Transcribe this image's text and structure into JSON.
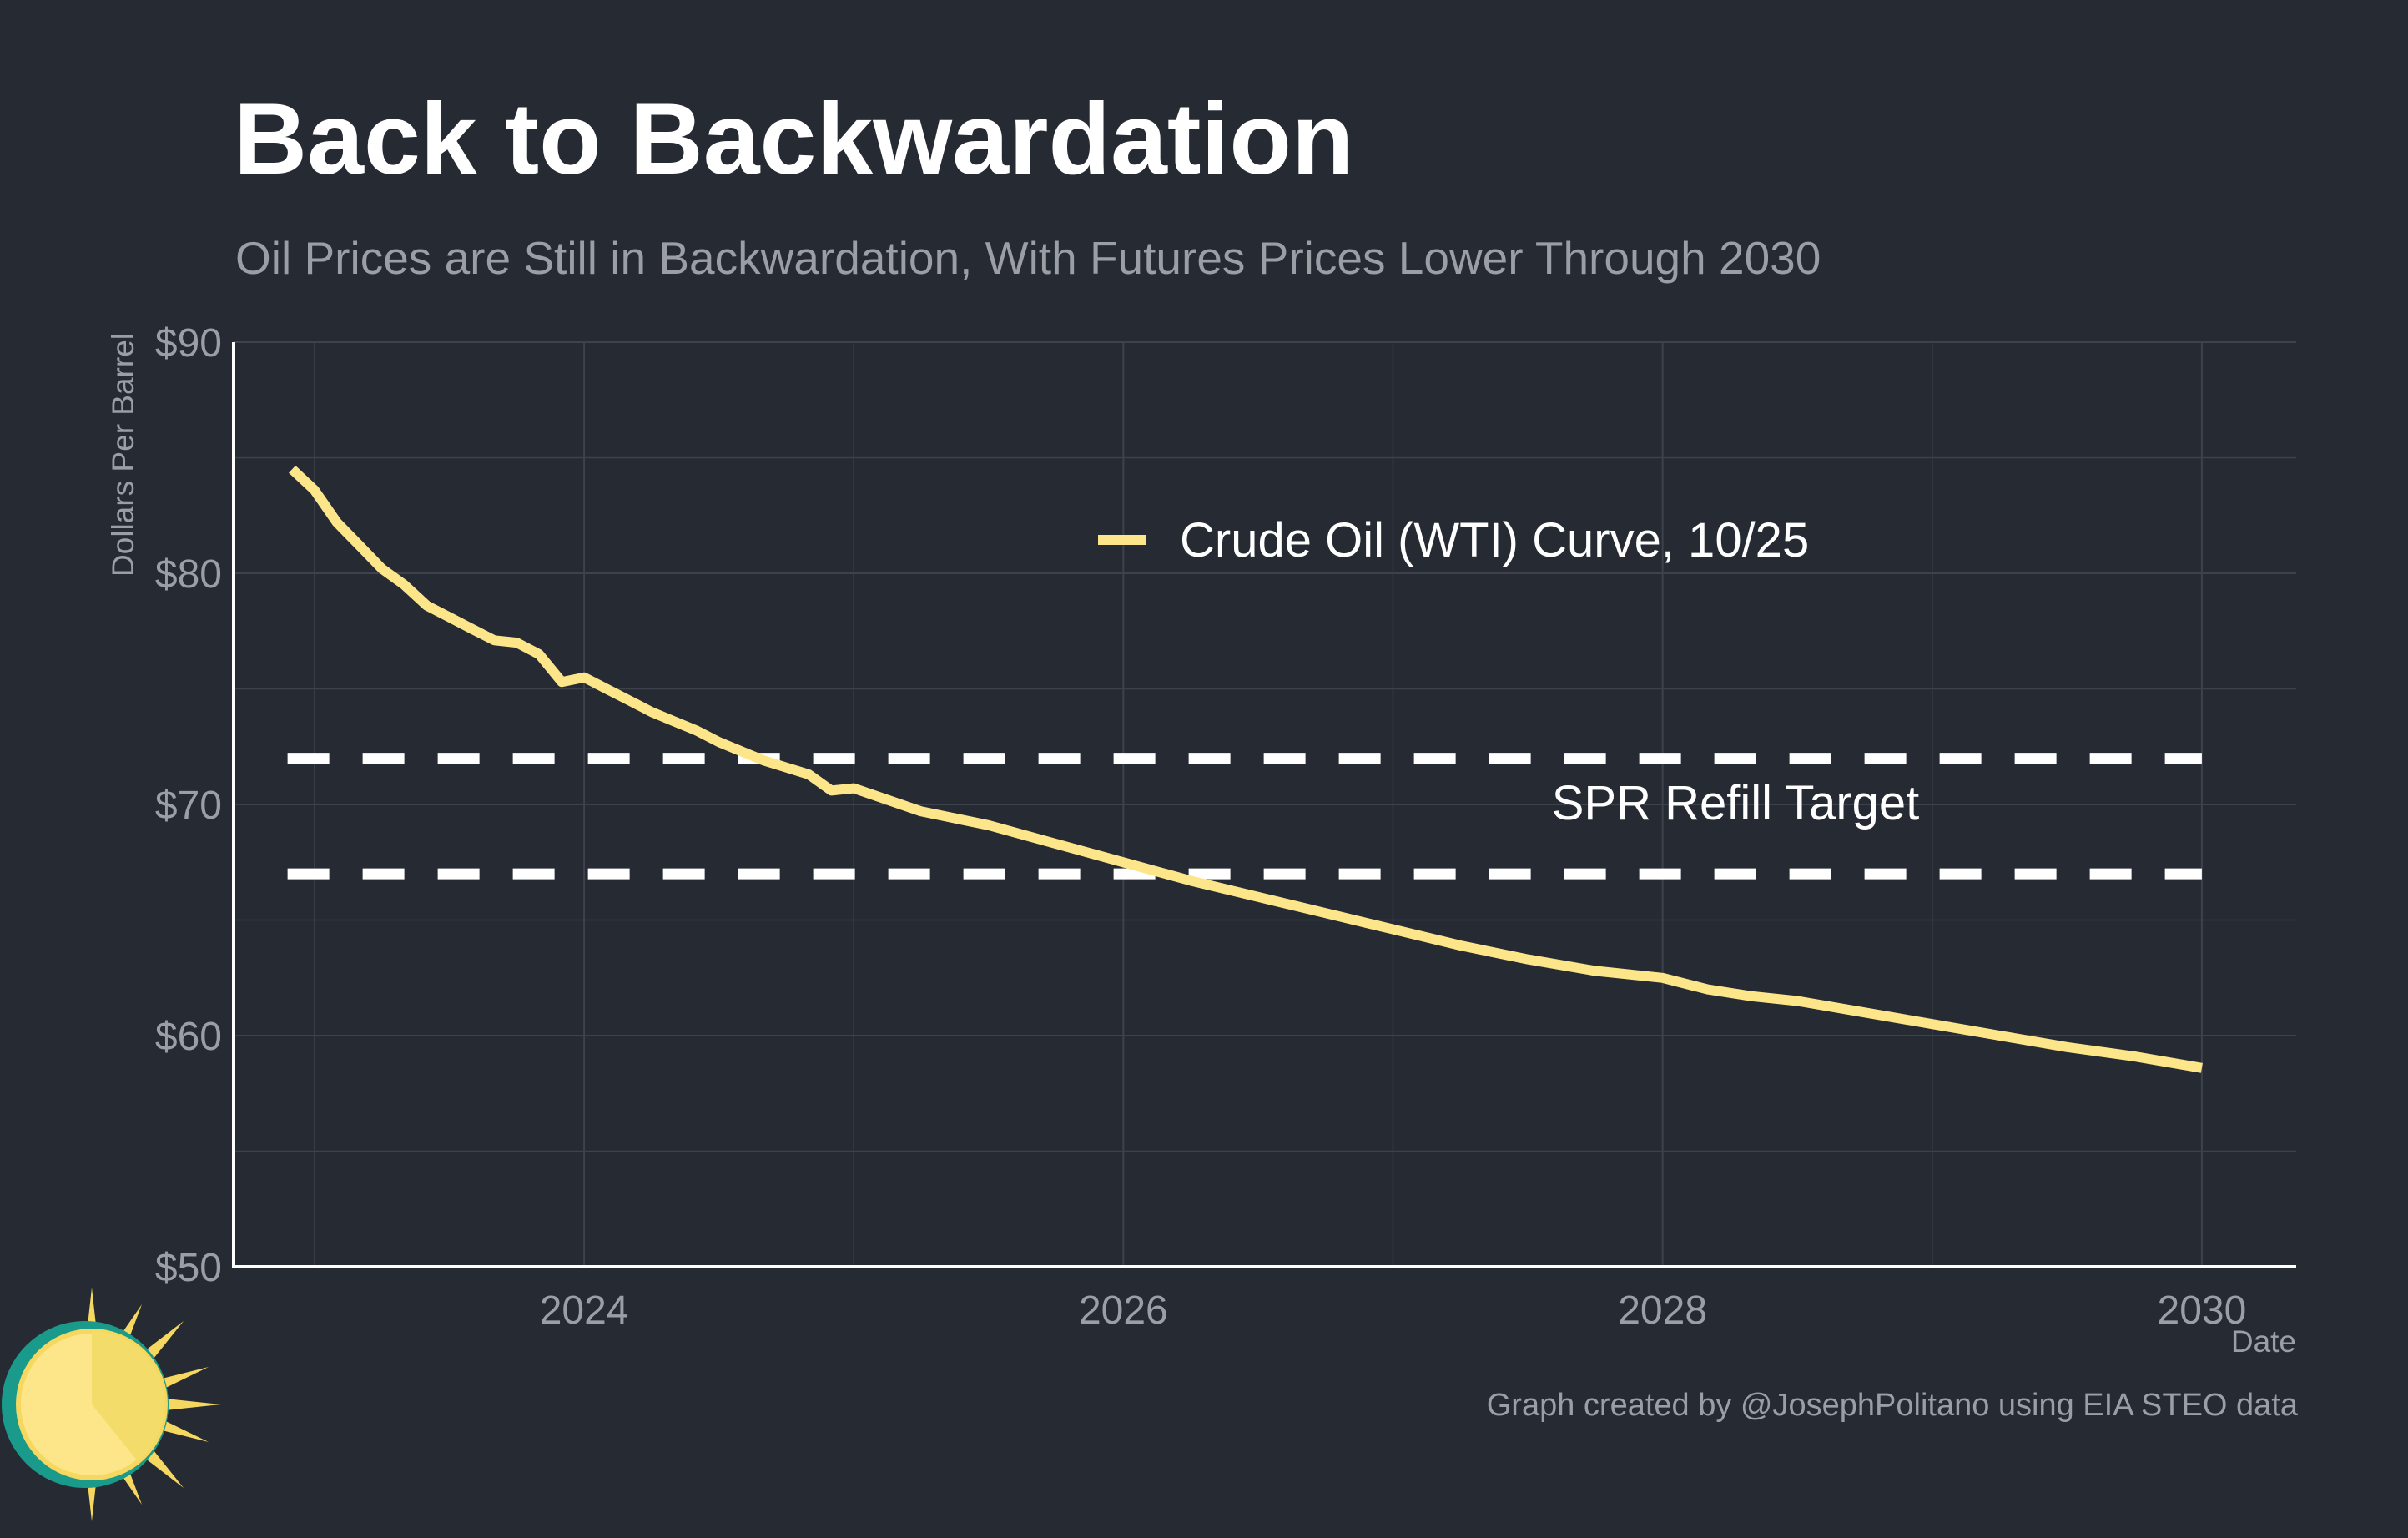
{
  "title": "Back to Backwardation",
  "subtitle": "Oil Prices are Still in Backwardation, With Futures Prices Lower Through 2030",
  "credit": "Graph created by @JosephPolitano using EIA STEO data",
  "colors": {
    "background": "#252a33",
    "series": "#fde68a",
    "target_lines": "#ffffff",
    "grid": "#3d424c",
    "muted_text": "#9b9ea5"
  },
  "chart_data": {
    "type": "line",
    "xlabel": "Date",
    "ylabel": "Dollars Per Barrel",
    "xlim": [
      2022.7,
      2030.35
    ],
    "ylim": [
      50,
      90
    ],
    "x_ticks": [
      {
        "value": 2024,
        "label": "2024"
      },
      {
        "value": 2026,
        "label": "2026"
      },
      {
        "value": 2028,
        "label": "2028"
      },
      {
        "value": 2030,
        "label": "2030"
      }
    ],
    "y_ticks": [
      {
        "value": 50,
        "label": "$50"
      },
      {
        "value": 60,
        "label": "$60"
      },
      {
        "value": 70,
        "label": "$70"
      },
      {
        "value": 80,
        "label": "$80"
      },
      {
        "value": 90,
        "label": "$90"
      }
    ],
    "legend": "top-center",
    "grid": true,
    "series": [
      {
        "name": "Crude Oil (WTI) Curve, 10/25",
        "x": [
          2022.917,
          2023.0,
          2023.083,
          2023.167,
          2023.25,
          2023.333,
          2023.417,
          2023.5,
          2023.583,
          2023.667,
          2023.75,
          2023.833,
          2023.917,
          2024.0,
          2024.083,
          2024.167,
          2024.25,
          2024.333,
          2024.417,
          2024.5,
          2024.583,
          2024.667,
          2024.75,
          2024.833,
          2024.917,
          2025.0,
          2025.25,
          2025.5,
          2025.75,
          2026.0,
          2026.25,
          2026.5,
          2026.75,
          2027.0,
          2027.25,
          2027.5,
          2027.75,
          2028.0,
          2028.167,
          2028.333,
          2028.5,
          2028.75,
          2029.0,
          2029.25,
          2029.5,
          2029.75,
          2030.0
        ],
        "values": [
          84.5,
          83.6,
          82.2,
          81.2,
          80.2,
          79.5,
          78.6,
          78.1,
          77.6,
          77.1,
          77.0,
          76.5,
          75.3,
          75.5,
          75.0,
          74.5,
          74.0,
          73.6,
          73.2,
          72.7,
          72.3,
          71.9,
          71.6,
          71.3,
          70.6,
          70.7,
          69.7,
          69.1,
          68.3,
          67.5,
          66.7,
          66.0,
          65.3,
          64.6,
          63.9,
          63.3,
          62.8,
          62.5,
          62.0,
          61.7,
          61.5,
          61.0,
          60.5,
          60.0,
          59.5,
          59.1,
          58.6
        ]
      }
    ],
    "reference_band": {
      "label": "SPR Refill Target",
      "lower": 67,
      "upper": 72,
      "x_start": 2022.9,
      "x_end": 2030.0,
      "style": "dashed"
    }
  }
}
